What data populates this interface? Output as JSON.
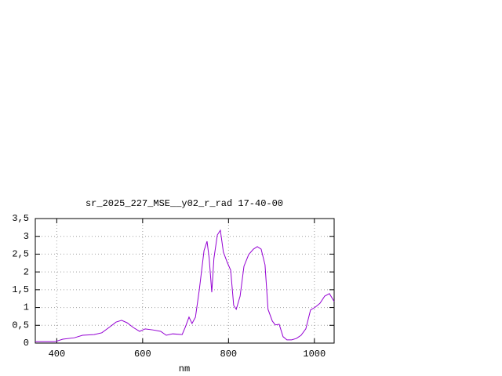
{
  "chart_data": {
    "type": "line",
    "title": "sr_2025_227_MSE__y02_r_rad 17-40-00",
    "x_label": "nm",
    "grid": true,
    "xlim": [
      350,
      1046
    ],
    "xticks": [
      400,
      600,
      800,
      1000
    ],
    "ylim": [
      0,
      3.5
    ],
    "yticks": [
      0,
      {
        "value": 0.5,
        "label": "0,5"
      },
      1,
      {
        "value": 1.5,
        "label": "1,5"
      },
      2,
      {
        "value": 2.5,
        "label": "2,5"
      },
      3,
      {
        "value": 3.5,
        "label": "3,5"
      }
    ],
    "x": [
      350,
      396,
      414,
      441,
      460,
      487,
      505,
      524,
      538,
      551,
      564,
      578,
      593,
      606,
      624,
      642,
      655,
      670,
      692,
      699,
      708,
      715,
      723,
      732,
      743,
      750,
      755,
      761,
      766,
      774,
      781,
      788,
      797,
      805,
      812,
      818,
      827,
      836,
      847,
      858,
      867,
      876,
      885,
      892,
      902,
      909,
      918,
      927,
      936,
      947,
      958,
      969,
      980,
      991,
      1002,
      1013,
      1024,
      1035,
      1046
    ],
    "series": [
      {
        "color": "#9400d3",
        "values": [
          0.04,
          0.04,
          0.11,
          0.15,
          0.22,
          0.24,
          0.29,
          0.46,
          0.59,
          0.64,
          0.57,
          0.44,
          0.33,
          0.4,
          0.37,
          0.33,
          0.22,
          0.26,
          0.24,
          0.44,
          0.73,
          0.55,
          0.73,
          1.5,
          2.6,
          2.86,
          2.38,
          1.43,
          2.38,
          3.04,
          3.17,
          2.56,
          2.27,
          2.05,
          1.06,
          0.95,
          1.32,
          2.16,
          2.49,
          2.64,
          2.71,
          2.64,
          2.2,
          0.95,
          0.62,
          0.51,
          0.53,
          0.18,
          0.09,
          0.09,
          0.13,
          0.22,
          0.4,
          0.93,
          1.01,
          1.12,
          1.32,
          1.39,
          1.17
        ]
      }
    ]
  }
}
